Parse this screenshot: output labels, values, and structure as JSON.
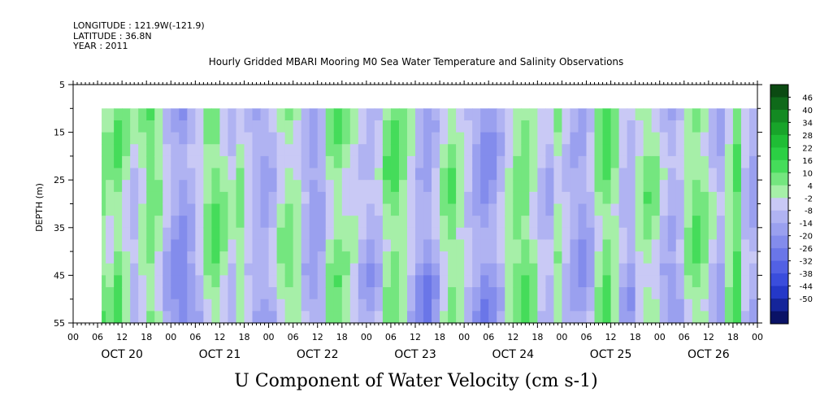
{
  "header": {
    "longitude": "LONGITUDE : 121.9W(-121.9)",
    "latitude": "LATITUDE : 36.8N",
    "year": "YEAR : 2011",
    "title": "Hourly Gridded MBARI Mooring M0 Sea Water Temperature and Salinity Observations"
  },
  "chart_data": {
    "type": "heatmap",
    "title": "Hourly Gridded MBARI Mooring M0 Sea Water Temperature and Salinity Observations",
    "xlabel": "U Component of Water Velocity (cm s-1)",
    "ylabel": "DEPTH (m)",
    "x_range_hours": [
      0,
      168
    ],
    "data_start_hour": 7,
    "data_end_hour": 168,
    "y_range": [
      5,
      55
    ],
    "depth_top_with_data": 10,
    "y_inverted": true,
    "y_ticks": [
      5,
      15,
      25,
      35,
      45,
      55
    ],
    "x_hour_ticks": [
      "00",
      "06",
      "12",
      "18",
      "00",
      "06",
      "12",
      "18",
      "00",
      "06",
      "12",
      "18",
      "00",
      "06",
      "12",
      "18",
      "00",
      "06",
      "12",
      "18",
      "00",
      "06",
      "12",
      "18",
      "00",
      "06",
      "12",
      "18",
      "00"
    ],
    "day_labels": [
      "OCT 20",
      "OCT 21",
      "OCT 22",
      "OCT 23",
      "OCT 24",
      "OCT 25",
      "OCT 26"
    ],
    "colorbar": {
      "levels": [
        "46",
        "40",
        "34",
        "28",
        "22",
        "16",
        "10",
        "4",
        "-2",
        "-8",
        "-14",
        "-20",
        "-26",
        "-32",
        "-38",
        "-44",
        "-50"
      ],
      "colors": [
        "#0b4a12",
        "#0f6a1a",
        "#138a22",
        "#18a42a",
        "#1fbd35",
        "#2bd044",
        "#45dc5a",
        "#74e67f",
        "#a6efa8",
        "#c9c9f5",
        "#b0b3f2",
        "#9aa0ef",
        "#838cec",
        "#6a76e8",
        "#5261e4",
        "#3a4ddc",
        "#2438c8",
        "#15259a",
        "#0a1266"
      ]
    },
    "column_means": [
      {
        "hour": 7,
        "u": 8
      },
      {
        "hour": 9,
        "u": 5
      },
      {
        "hour": 11,
        "u": 10
      },
      {
        "hour": 13,
        "u": 2
      },
      {
        "hour": 15,
        "u": -4
      },
      {
        "hour": 17,
        "u": 3
      },
      {
        "hour": 19,
        "u": 10
      },
      {
        "hour": 21,
        "u": 4
      },
      {
        "hour": 23,
        "u": -6
      },
      {
        "hour": 25,
        "u": -12
      },
      {
        "hour": 27,
        "u": -16
      },
      {
        "hour": 29,
        "u": -10
      },
      {
        "hour": 31,
        "u": -3
      },
      {
        "hour": 33,
        "u": 6
      },
      {
        "hour": 35,
        "u": 10
      },
      {
        "hour": 37,
        "u": 4
      },
      {
        "hour": 39,
        "u": -2
      },
      {
        "hour": 41,
        "u": 5
      },
      {
        "hour": 43,
        "u": -3
      },
      {
        "hour": 45,
        "u": -9
      },
      {
        "hour": 47,
        "u": -11
      },
      {
        "hour": 49,
        "u": -6
      },
      {
        "hour": 51,
        "u": 2
      },
      {
        "hour": 53,
        "u": 7
      },
      {
        "hour": 55,
        "u": 4
      },
      {
        "hour": 57,
        "u": -6
      },
      {
        "hour": 59,
        "u": -12
      },
      {
        "hour": 61,
        "u": -8
      },
      {
        "hour": 63,
        "u": 4
      },
      {
        "hour": 65,
        "u": 9
      },
      {
        "hour": 67,
        "u": 5
      },
      {
        "hour": 69,
        "u": 1
      },
      {
        "hour": 71,
        "u": -4
      },
      {
        "hour": 73,
        "u": -8
      },
      {
        "hour": 75,
        "u": -4
      },
      {
        "hour": 77,
        "u": 7
      },
      {
        "hour": 79,
        "u": 11
      },
      {
        "hour": 81,
        "u": 6
      },
      {
        "hour": 83,
        "u": -2
      },
      {
        "hour": 85,
        "u": -10
      },
      {
        "hour": 87,
        "u": -14
      },
      {
        "hour": 89,
        "u": -7
      },
      {
        "hour": 91,
        "u": 3
      },
      {
        "hour": 93,
        "u": 8
      },
      {
        "hour": 95,
        "u": 2
      },
      {
        "hour": 97,
        "u": -5
      },
      {
        "hour": 99,
        "u": -11
      },
      {
        "hour": 101,
        "u": -16
      },
      {
        "hour": 103,
        "u": -13
      },
      {
        "hour": 105,
        "u": -5
      },
      {
        "hour": 107,
        "u": 3
      },
      {
        "hour": 109,
        "u": 8
      },
      {
        "hour": 111,
        "u": 10
      },
      {
        "hour": 113,
        "u": 4
      },
      {
        "hour": 115,
        "u": -4
      },
      {
        "hour": 117,
        "u": -6
      },
      {
        "hour": 119,
        "u": 4
      },
      {
        "hour": 121,
        "u": -3
      },
      {
        "hour": 123,
        "u": -9
      },
      {
        "hour": 125,
        "u": -12
      },
      {
        "hour": 127,
        "u": -6
      },
      {
        "hour": 129,
        "u": 6
      },
      {
        "hour": 131,
        "u": 12
      },
      {
        "hour": 133,
        "u": 5
      },
      {
        "hour": 135,
        "u": -5
      },
      {
        "hour": 137,
        "u": -8
      },
      {
        "hour": 139,
        "u": 2
      },
      {
        "hour": 141,
        "u": 7
      },
      {
        "hour": 143,
        "u": 3
      },
      {
        "hour": 145,
        "u": -5
      },
      {
        "hour": 147,
        "u": -10
      },
      {
        "hour": 149,
        "u": -6
      },
      {
        "hour": 151,
        "u": 4
      },
      {
        "hour": 153,
        "u": 9
      },
      {
        "hour": 155,
        "u": 6
      },
      {
        "hour": 157,
        "u": -3
      },
      {
        "hour": 159,
        "u": -9
      },
      {
        "hour": 161,
        "u": 4
      },
      {
        "hour": 163,
        "u": 13
      },
      {
        "hour": 165,
        "u": -4
      },
      {
        "hour": 167,
        "u": -10
      }
    ]
  }
}
